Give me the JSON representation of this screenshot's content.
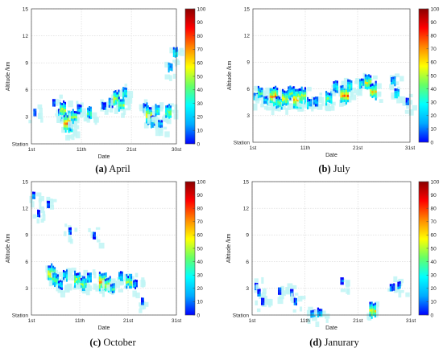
{
  "figure": {
    "panels": [
      {
        "key": "a",
        "label": "(a)",
        "name": "April"
      },
      {
        "key": "b",
        "label": "(b)",
        "name": "July"
      },
      {
        "key": "c",
        "label": "(c)",
        "name": "October"
      },
      {
        "key": "d",
        "label": "(d)",
        "name": "Janurary"
      }
    ]
  },
  "colormap": {
    "stops": [
      "#0000ff",
      "#00aaff",
      "#00ffff",
      "#66ff66",
      "#ffff00",
      "#ff8800",
      "#ff0000",
      "#8b0000"
    ],
    "ticks": [
      0,
      10,
      20,
      30,
      40,
      50,
      60,
      70,
      80,
      90,
      100
    ]
  },
  "chart_data": [
    {
      "type": "heatmap",
      "title": "April",
      "xlabel": "Date",
      "ylabel": "Altitude /km",
      "xlim": [
        1,
        30
      ],
      "ylim": [
        0,
        15
      ],
      "xticks": [
        {
          "v": 1,
          "label": "1st"
        },
        {
          "v": 11,
          "label": "11th"
        },
        {
          "v": 21,
          "label": "21st"
        },
        {
          "v": 30,
          "label": "30st"
        }
      ],
      "yticks": [
        {
          "v": 0,
          "label": "Station"
        },
        {
          "v": 3,
          "label": "3"
        },
        {
          "v": 6,
          "label": "6"
        },
        {
          "v": 9,
          "label": "9"
        },
        {
          "v": 12,
          "label": "12"
        },
        {
          "v": 15,
          "label": "15"
        }
      ],
      "clim": [
        0,
        100
      ],
      "grid": true,
      "blobs": [
        {
          "day": 1.7,
          "alt": 3.5,
          "intensity": 10
        },
        {
          "day": 5.5,
          "alt": 4.6,
          "intensity": 12
        },
        {
          "day": 6.8,
          "alt": 3.2,
          "intensity": 35
        },
        {
          "day": 7.3,
          "alt": 3.9,
          "intensity": 50
        },
        {
          "day": 8.2,
          "alt": 2.4,
          "intensity": 75
        },
        {
          "day": 8.8,
          "alt": 1.8,
          "intensity": 30
        },
        {
          "day": 9.5,
          "alt": 3.1,
          "intensity": 40
        },
        {
          "day": 10.6,
          "alt": 3.9,
          "intensity": 25
        },
        {
          "day": 12.6,
          "alt": 3.5,
          "intensity": 35
        },
        {
          "day": 15.5,
          "alt": 4.2,
          "intensity": 15
        },
        {
          "day": 16.9,
          "alt": 4.6,
          "intensity": 20
        },
        {
          "day": 18.0,
          "alt": 5.1,
          "intensity": 55
        },
        {
          "day": 19.0,
          "alt": 4.4,
          "intensity": 45
        },
        {
          "day": 19.7,
          "alt": 5.7,
          "intensity": 30
        },
        {
          "day": 23.8,
          "alt": 4.0,
          "intensity": 25
        },
        {
          "day": 24.5,
          "alt": 3.2,
          "intensity": 60
        },
        {
          "day": 25.3,
          "alt": 2.5,
          "intensity": 30
        },
        {
          "day": 26.2,
          "alt": 3.8,
          "intensity": 35
        },
        {
          "day": 26.8,
          "alt": 2.2,
          "intensity": 20
        },
        {
          "day": 28.4,
          "alt": 3.6,
          "intensity": 45
        },
        {
          "day": 28.8,
          "alt": 8.5,
          "intensity": 20
        },
        {
          "day": 29.8,
          "alt": 10.2,
          "intensity": 30
        }
      ]
    },
    {
      "type": "heatmap",
      "title": "July",
      "xlabel": "Date",
      "ylabel": "Altitude /km",
      "xlim": [
        1,
        31
      ],
      "ylim": [
        0,
        15
      ],
      "xticks": [
        {
          "v": 1,
          "label": "1st"
        },
        {
          "v": 11,
          "label": "11th"
        },
        {
          "v": 21,
          "label": "21st"
        },
        {
          "v": 31,
          "label": "31st"
        }
      ],
      "yticks": [
        {
          "v": 0,
          "label": "Station"
        },
        {
          "v": 3,
          "label": "3"
        },
        {
          "v": 6,
          "label": "6"
        },
        {
          "v": 9,
          "label": "9"
        },
        {
          "v": 12,
          "label": "12"
        },
        {
          "v": 15,
          "label": "15"
        }
      ],
      "clim": [
        0,
        100
      ],
      "grid": true,
      "blobs": [
        {
          "day": 1.6,
          "alt": 5.1,
          "intensity": 20
        },
        {
          "day": 2.4,
          "alt": 5.6,
          "intensity": 35
        },
        {
          "day": 3.5,
          "alt": 4.7,
          "intensity": 30
        },
        {
          "day": 5.0,
          "alt": 5.2,
          "intensity": 70
        },
        {
          "day": 6.0,
          "alt": 4.5,
          "intensity": 45
        },
        {
          "day": 7.2,
          "alt": 5.0,
          "intensity": 55
        },
        {
          "day": 8.3,
          "alt": 5.6,
          "intensity": 40
        },
        {
          "day": 9.5,
          "alt": 4.9,
          "intensity": 65
        },
        {
          "day": 10.5,
          "alt": 5.3,
          "intensity": 50
        },
        {
          "day": 11.8,
          "alt": 4.4,
          "intensity": 30
        },
        {
          "day": 13.0,
          "alt": 4.6,
          "intensity": 20
        },
        {
          "day": 15.5,
          "alt": 5.0,
          "intensity": 40
        },
        {
          "day": 16.8,
          "alt": 6.3,
          "intensity": 30
        },
        {
          "day": 18.5,
          "alt": 5.4,
          "intensity": 70
        },
        {
          "day": 19.5,
          "alt": 6.4,
          "intensity": 35
        },
        {
          "day": 21.8,
          "alt": 6.6,
          "intensity": 25
        },
        {
          "day": 23.0,
          "alt": 6.8,
          "intensity": 55
        },
        {
          "day": 24.0,
          "alt": 5.8,
          "intensity": 60
        },
        {
          "day": 27.8,
          "alt": 6.9,
          "intensity": 20
        },
        {
          "day": 28.5,
          "alt": 5.5,
          "intensity": 30
        },
        {
          "day": 30.5,
          "alt": 4.6,
          "intensity": 10
        }
      ]
    },
    {
      "type": "heatmap",
      "title": "October",
      "xlabel": "Date",
      "ylabel": "Altitude /km",
      "xlim": [
        1,
        31
      ],
      "ylim": [
        0,
        15
      ],
      "xticks": [
        {
          "v": 1,
          "label": "1st"
        },
        {
          "v": 11,
          "label": "11th"
        },
        {
          "v": 21,
          "label": "21st"
        },
        {
          "v": 31,
          "label": "31st"
        }
      ],
      "yticks": [
        {
          "v": 0,
          "label": "Station"
        },
        {
          "v": 3,
          "label": "3"
        },
        {
          "v": 6,
          "label": "6"
        },
        {
          "v": 9,
          "label": "9"
        },
        {
          "v": 12,
          "label": "12"
        },
        {
          "v": 15,
          "label": "15"
        }
      ],
      "clim": [
        0,
        100
      ],
      "grid": true,
      "blobs": [
        {
          "day": 1.5,
          "alt": 13.5,
          "intensity": 8
        },
        {
          "day": 2.5,
          "alt": 11.5,
          "intensity": 8
        },
        {
          "day": 4.5,
          "alt": 12.5,
          "intensity": 8
        },
        {
          "day": 5.2,
          "alt": 4.7,
          "intensity": 65
        },
        {
          "day": 6.0,
          "alt": 4.0,
          "intensity": 40
        },
        {
          "day": 7.0,
          "alt": 3.4,
          "intensity": 25
        },
        {
          "day": 8.0,
          "alt": 4.5,
          "intensity": 30
        },
        {
          "day": 9.0,
          "alt": 9.5,
          "intensity": 8
        },
        {
          "day": 10.5,
          "alt": 4.1,
          "intensity": 50
        },
        {
          "day": 11.8,
          "alt": 3.6,
          "intensity": 40
        },
        {
          "day": 13.0,
          "alt": 4.2,
          "intensity": 30
        },
        {
          "day": 14.0,
          "alt": 9.0,
          "intensity": 8
        },
        {
          "day": 15.8,
          "alt": 3.8,
          "intensity": 70
        },
        {
          "day": 16.8,
          "alt": 3.4,
          "intensity": 55
        },
        {
          "day": 17.8,
          "alt": 3.0,
          "intensity": 30
        },
        {
          "day": 19.5,
          "alt": 4.4,
          "intensity": 25
        },
        {
          "day": 21.2,
          "alt": 3.8,
          "intensity": 45
        },
        {
          "day": 22.5,
          "alt": 3.5,
          "intensity": 20
        },
        {
          "day": 24.0,
          "alt": 1.6,
          "intensity": 8
        }
      ]
    },
    {
      "type": "heatmap",
      "title": "Janurary",
      "xlabel": "Date",
      "ylabel": "Altitude /km",
      "xlim": [
        1,
        31
      ],
      "ylim": [
        0,
        15
      ],
      "xticks": [
        {
          "v": 1,
          "label": "1st"
        },
        {
          "v": 11,
          "label": "11th"
        },
        {
          "v": 21,
          "label": "21st"
        },
        {
          "v": 31,
          "label": "31st"
        }
      ],
      "yticks": [
        {
          "v": 0,
          "label": "Station"
        },
        {
          "v": 3,
          "label": "3"
        },
        {
          "v": 6,
          "label": "6"
        },
        {
          "v": 9,
          "label": "9"
        },
        {
          "v": 12,
          "label": "12"
        },
        {
          "v": 15,
          "label": "15"
        }
      ],
      "clim": [
        0,
        100
      ],
      "grid": true,
      "blobs": [
        {
          "day": 1.8,
          "alt": 3.3,
          "intensity": 5
        },
        {
          "day": 2.3,
          "alt": 2.6,
          "intensity": 5
        },
        {
          "day": 3.0,
          "alt": 1.6,
          "intensity": 5
        },
        {
          "day": 6.2,
          "alt": 2.8,
          "intensity": 5
        },
        {
          "day": 8.5,
          "alt": 2.6,
          "intensity": 5
        },
        {
          "day": 9.2,
          "alt": 1.6,
          "intensity": 5
        },
        {
          "day": 12.5,
          "alt": 0.15,
          "intensity": 15
        },
        {
          "day": 13.8,
          "alt": 0.25,
          "intensity": 25
        },
        {
          "day": 18.0,
          "alt": 3.9,
          "intensity": 5
        },
        {
          "day": 23.8,
          "alt": 0.6,
          "intensity": 55
        },
        {
          "day": 27.5,
          "alt": 3.1,
          "intensity": 15
        },
        {
          "day": 28.8,
          "alt": 3.4,
          "intensity": 10
        }
      ]
    }
  ]
}
